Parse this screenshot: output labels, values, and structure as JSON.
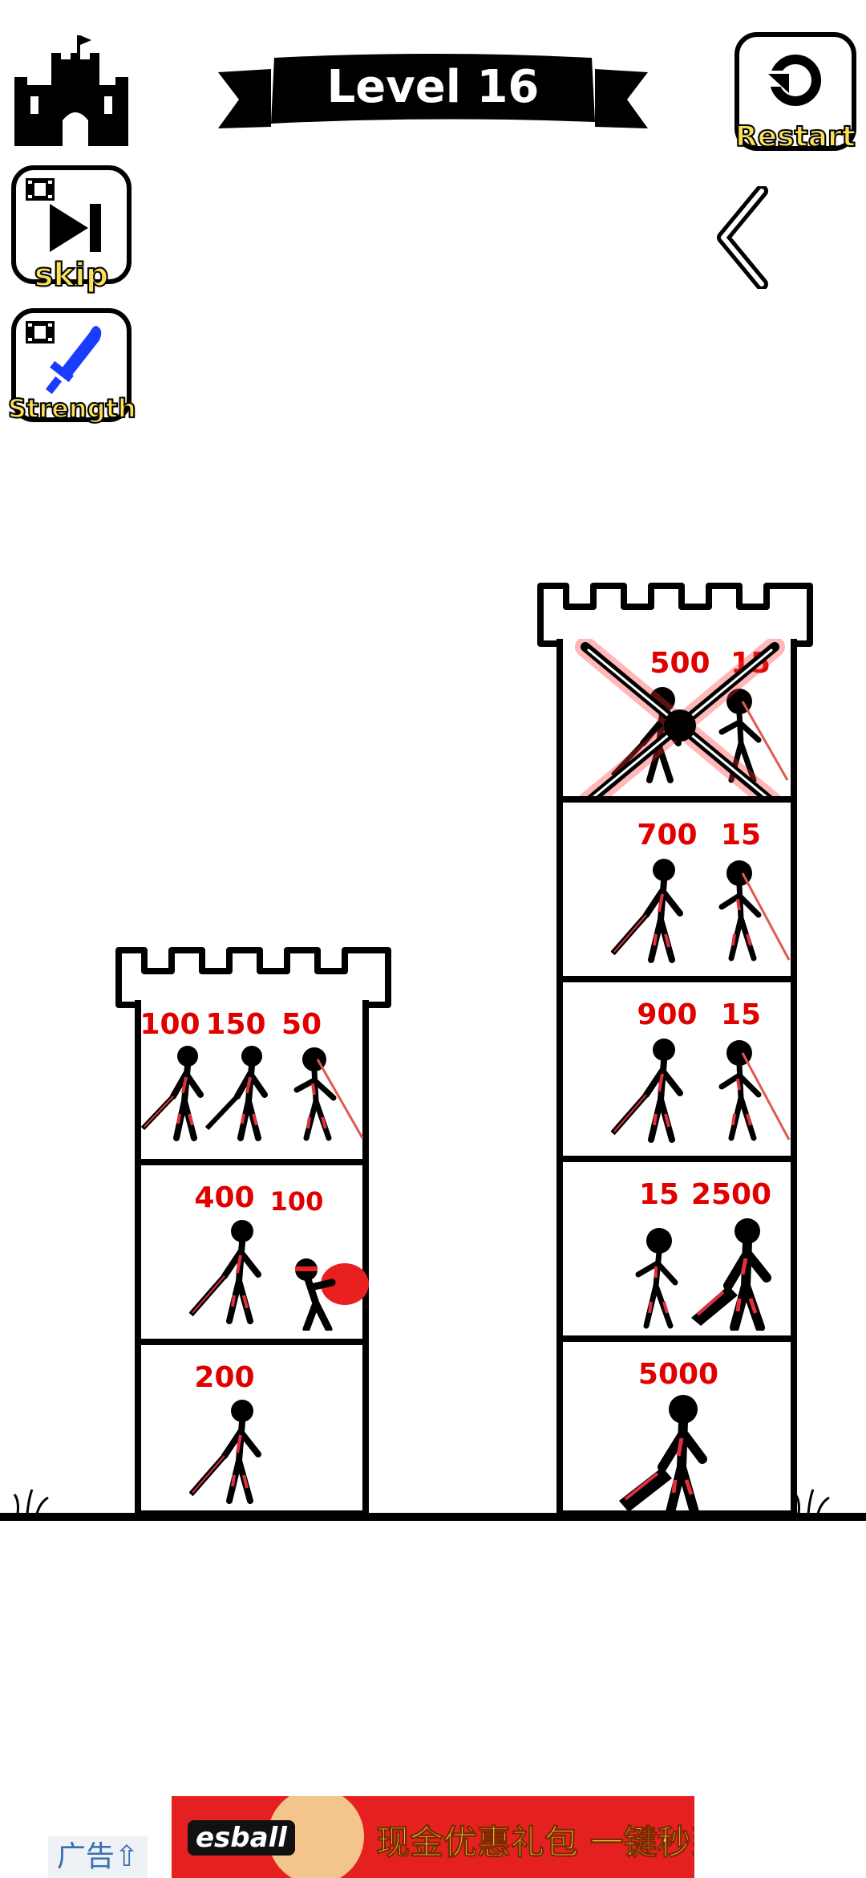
{
  "header": {
    "level_title": "Level 16",
    "home_icon": "castle-icon",
    "restart_label": "Restart",
    "restart_icon": "refresh-icon",
    "back_icon": "chevron-left-icon"
  },
  "side_buttons": {
    "skip_label": "skip",
    "skip_icon": "skip-forward-icon",
    "strength_label": "Strength",
    "strength_icon": "sword-icon",
    "video_icon": "film-icon"
  },
  "player_tower": {
    "floors": [
      {
        "troops": [
          "100",
          "150",
          "50"
        ]
      },
      {
        "troops": [
          "400",
          "100"
        ]
      },
      {
        "troops": [
          "200"
        ]
      }
    ]
  },
  "enemy_tower": {
    "floors": [
      {
        "troops": [
          "500",
          "15"
        ],
        "state": "crossed-out"
      },
      {
        "troops": [
          "700",
          "15"
        ]
      },
      {
        "troops": [
          "900",
          "15"
        ]
      },
      {
        "troops": [
          "15",
          "2500"
        ]
      },
      {
        "troops": [
          "5000"
        ]
      }
    ]
  },
  "ad": {
    "label": "广告",
    "brand": "esball",
    "text": "现金优惠礼包 一键秒到帐",
    "colors": {
      "background": "#e52020",
      "text": "#ffe24a"
    }
  }
}
